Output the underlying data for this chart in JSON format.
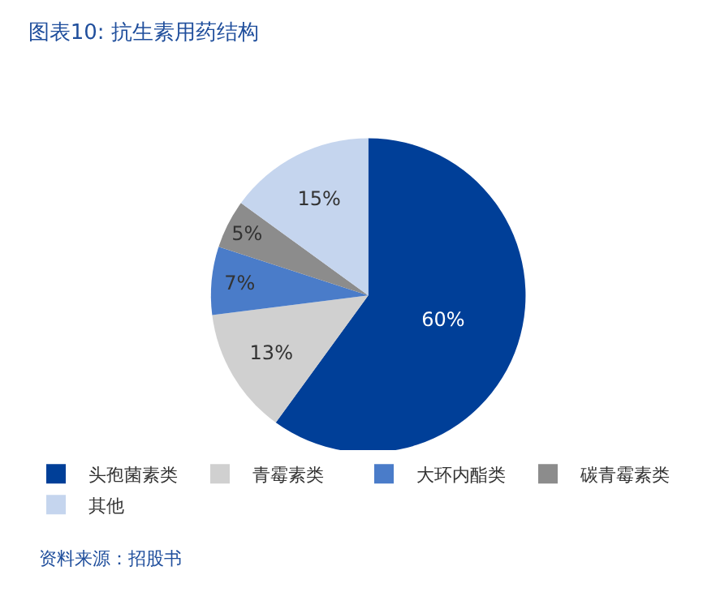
{
  "chart_data": {
    "type": "pie",
    "title": "图表10: 抗生素用药结构",
    "categories": [
      "头孢菌素类",
      "青霉素类",
      "大环内酯类",
      "碳青霉素类",
      "其他"
    ],
    "values": [
      60,
      13,
      7,
      5,
      15
    ],
    "colors": [
      "#003f98",
      "#d0d0d0",
      "#4a7cc9",
      "#8c8c8c",
      "#c5d5ee"
    ],
    "value_labels": [
      "60%",
      "13%",
      "7%",
      "5%",
      "15%"
    ],
    "legend": "bottom",
    "annotations": [
      "资料来源：招股书"
    ]
  }
}
